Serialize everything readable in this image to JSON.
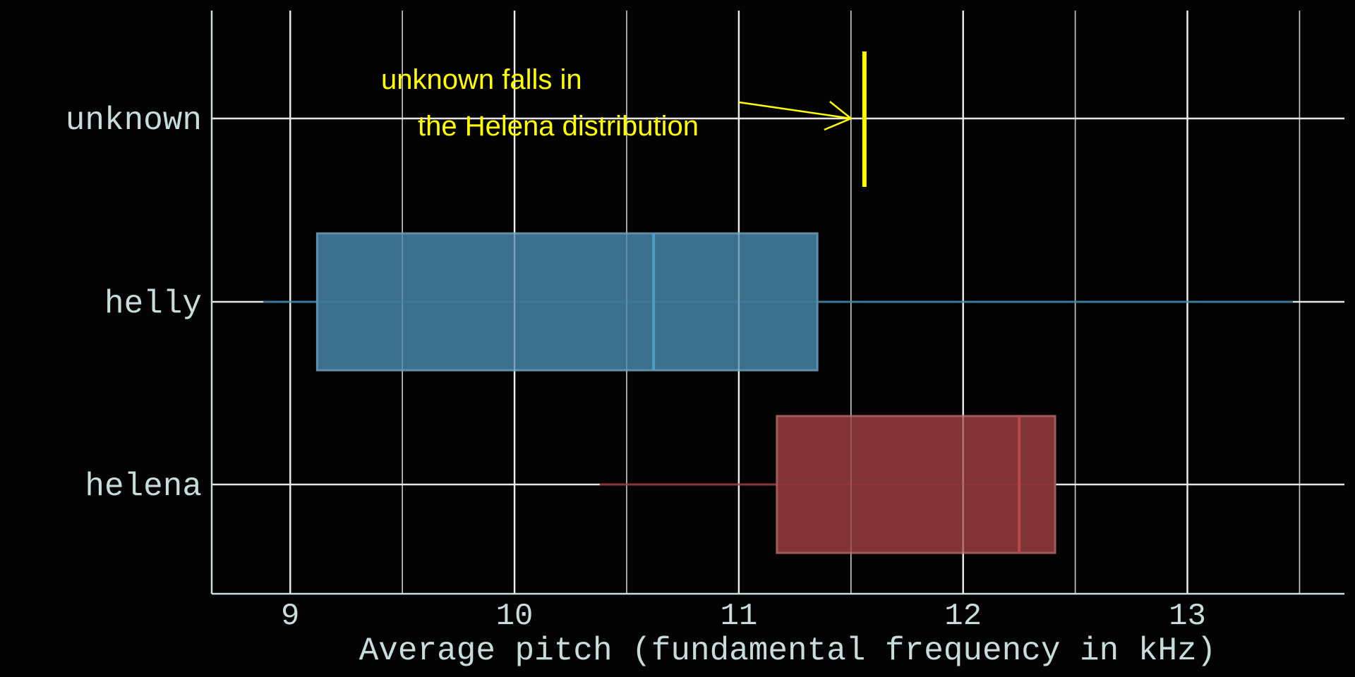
{
  "chart_data": {
    "type": "boxplot",
    "orientation": "horizontal",
    "title": "",
    "xlabel": "Average pitch (fundamental frequency in kHz)",
    "ylabel": "",
    "xlim": [
      8.65,
      13.7
    ],
    "xticks": [
      "9",
      "10",
      "11",
      "12",
      "13"
    ],
    "grid": true,
    "categories": [
      "unknown",
      "helly",
      "helena"
    ],
    "boxes": [
      {
        "category": "helly",
        "whisker_low": 8.88,
        "q1": 9.12,
        "median": 10.62,
        "q3": 11.35,
        "whisker_high": 13.47,
        "color": "#3e7798"
      },
      {
        "category": "helena",
        "whisker_low": 10.38,
        "q1": 11.17,
        "median": 12.25,
        "q3": 12.41,
        "whisker_high": 12.41,
        "color": "#8b373a"
      }
    ],
    "marker": {
      "category": "unknown",
      "value": 11.56,
      "color": "#ffff00"
    },
    "annotation": {
      "lines": [
        "unknown falls in",
        "the Helena distribution"
      ],
      "color": "#ffff00"
    }
  }
}
